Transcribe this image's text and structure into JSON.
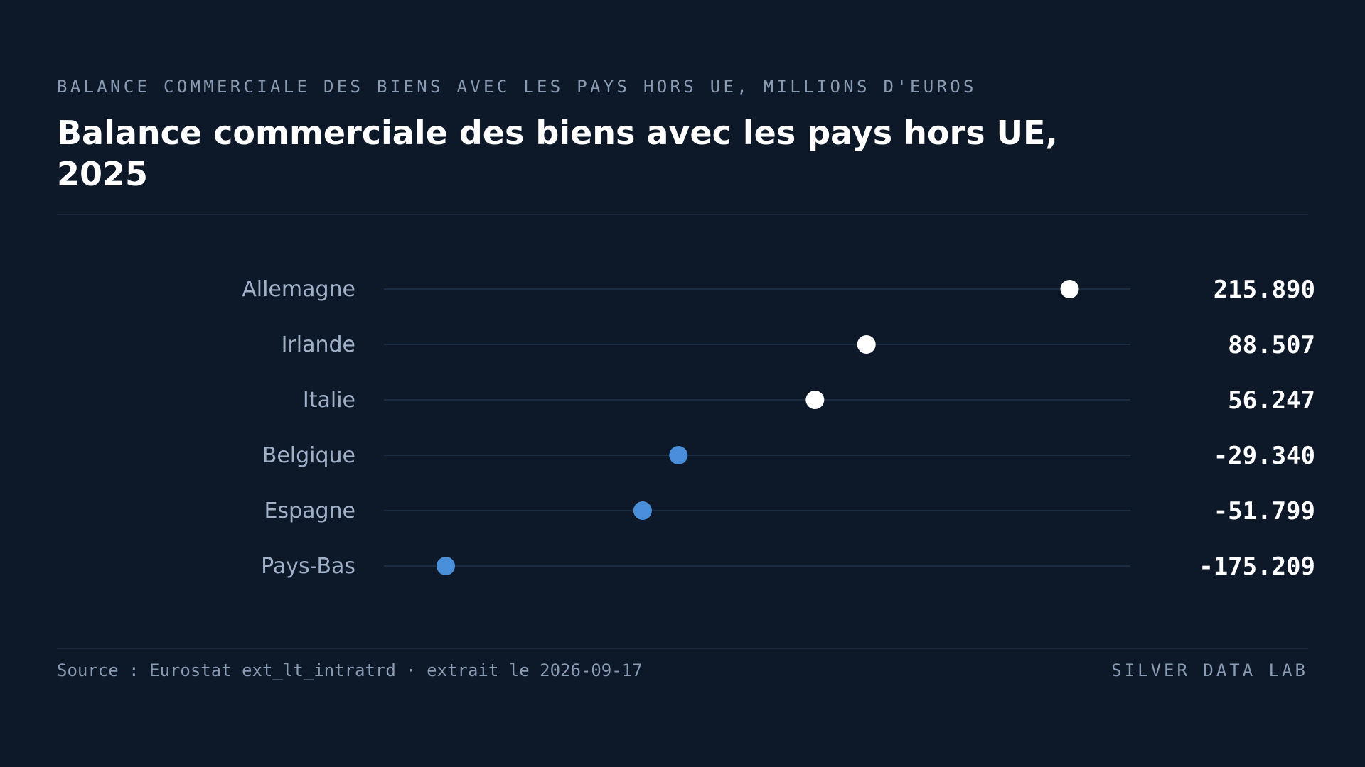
{
  "header": {
    "kicker": "BALANCE COMMERCIALE DES BIENS AVEC LES PAYS HORS UE, MILLIONS D'EUROS",
    "title": "Balance commerciale des biens avec les pays hors UE, 2025"
  },
  "footer": {
    "source": "Source : Eurostat ext_lt_intratrd · extrait le 2026-09-17",
    "brand": "SILVER DATA LAB"
  },
  "colors": {
    "background": "#0d1829",
    "positive": "#ffffff",
    "negative": "#4a8fd9",
    "track": "#22324a",
    "label": "#9fb0c8",
    "value": "#ffffff"
  },
  "chart_data": {
    "type": "scatter",
    "title": "Balance commerciale des biens avec les pays hors UE, 2025",
    "subtitle": "BALANCE COMMERCIALE DES BIENS AVEC LES PAYS HORS UE, MILLIONS D'EUROS",
    "categories": [
      "Allemagne",
      "Irlande",
      "Italie",
      "Belgique",
      "Espagne",
      "Pays-Bas"
    ],
    "values": [
      215890,
      88507,
      56247,
      -29340,
      -51799,
      -175209
    ],
    "value_labels": [
      "215.890",
      "88.507",
      "56.247",
      "-29.340",
      "-51.799",
      "-175.209"
    ],
    "xlim": [
      -214000,
      254000
    ],
    "grid": false,
    "legend": "none"
  }
}
